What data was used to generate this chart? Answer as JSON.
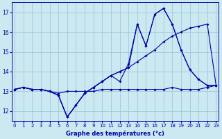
{
  "title": "Graphe des températures (°c)",
  "background_color": "#cce8f0",
  "grid_color": "#99ccdd",
  "line_color": "#0000aa",
  "x_ticks": [
    0,
    1,
    2,
    3,
    4,
    5,
    6,
    7,
    8,
    9,
    10,
    11,
    12,
    13,
    14,
    15,
    16,
    17,
    18,
    19,
    20,
    21,
    22,
    23
  ],
  "y_ticks": [
    12,
    13,
    14,
    15,
    16,
    17
  ],
  "ylim": [
    11.5,
    17.5
  ],
  "xlim": [
    -0.3,
    23.3
  ],
  "series": [
    {
      "x": [
        0,
        1,
        2,
        3,
        4,
        5,
        6,
        7,
        8,
        9,
        10,
        11,
        12,
        13,
        14,
        15,
        16,
        17,
        18,
        19,
        20,
        21,
        22,
        23
      ],
      "y": [
        13.1,
        13.2,
        13.1,
        13.1,
        13.0,
        12.9,
        13.0,
        13.0,
        13.0,
        13.0,
        13.1,
        13.1,
        13.1,
        13.1,
        13.1,
        13.1,
        13.1,
        13.1,
        13.2,
        13.1,
        13.1,
        13.1,
        13.2,
        13.3
      ]
    },
    {
      "x": [
        0,
        1,
        2,
        3,
        4,
        5,
        6,
        7,
        8,
        9,
        10,
        11,
        12,
        13,
        14,
        15,
        16,
        17,
        18,
        19,
        20,
        21,
        22,
        23
      ],
      "y": [
        13.1,
        13.2,
        13.1,
        13.1,
        13.0,
        12.8,
        11.7,
        12.3,
        12.9,
        13.2,
        13.5,
        13.8,
        14.0,
        14.2,
        14.5,
        14.8,
        15.1,
        15.5,
        15.8,
        16.0,
        16.2,
        16.3,
        16.4,
        13.3
      ]
    },
    {
      "x": [
        0,
        1,
        2,
        3,
        4,
        5,
        6,
        7,
        8,
        9,
        10,
        11,
        12,
        13,
        14,
        15,
        16,
        17,
        18,
        19,
        20,
        21,
        22,
        23
      ],
      "y": [
        13.1,
        13.2,
        13.1,
        13.1,
        13.0,
        12.8,
        11.7,
        12.3,
        12.9,
        13.2,
        13.5,
        13.8,
        14.0,
        14.2,
        16.4,
        15.3,
        16.9,
        17.2,
        16.4,
        15.1,
        14.1,
        13.6,
        13.3,
        13.3
      ]
    },
    {
      "x": [
        0,
        1,
        2,
        3,
        4,
        5,
        6,
        7,
        8,
        9,
        10,
        11,
        12,
        13,
        14,
        15,
        16,
        17,
        18,
        19,
        20,
        21,
        22,
        23
      ],
      "y": [
        13.1,
        13.2,
        13.1,
        13.1,
        13.0,
        12.8,
        11.7,
        12.3,
        12.9,
        13.2,
        13.5,
        13.8,
        13.5,
        14.4,
        16.4,
        15.3,
        16.9,
        17.2,
        16.4,
        15.1,
        14.1,
        13.6,
        13.3,
        13.3
      ]
    }
  ]
}
